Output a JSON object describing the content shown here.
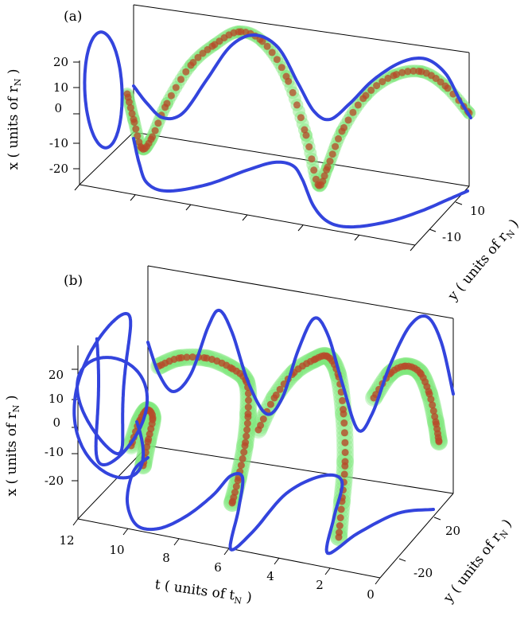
{
  "colors": {
    "projection": "#3344dd",
    "tube_glow": "#7fe77a",
    "tube_core": "#b84a2a",
    "axes": "#000000"
  },
  "chart_data": [
    {
      "type": "line",
      "panel_label": "(a)",
      "zlabel_prefix": "x ( units of r",
      "zlabel_sub": "N",
      "zlabel_suffix": " )",
      "ylabel_prefix": "y ( units of r",
      "ylabel_sub": "N",
      "ylabel_suffix": " )",
      "z_ticks": [
        "20",
        "10",
        "0",
        "-10",
        "-20"
      ],
      "z_tick_values": [
        20,
        10,
        0,
        -10,
        -20
      ],
      "y_ticks": [
        "10",
        "-10"
      ],
      "y_tick_values": [
        10,
        -10
      ],
      "t_range": [
        0,
        12
      ],
      "zlim": [
        -25,
        25
      ],
      "ylim": [
        -15,
        15
      ]
    },
    {
      "type": "line",
      "panel_label": "(b)",
      "zlabel_prefix": "x ( units of r",
      "zlabel_sub": "N",
      "zlabel_suffix": " )",
      "ylabel_prefix": "y ( units of r",
      "ylabel_sub": "N",
      "ylabel_suffix": " )",
      "xlabel_prefix": "t ( units of t",
      "xlabel_sub": "N",
      "xlabel_suffix": " )",
      "z_ticks": [
        "20",
        "10",
        "0",
        "-10",
        "-20"
      ],
      "z_tick_values": [
        20,
        10,
        0,
        -10,
        -20
      ],
      "y_ticks": [
        "20",
        "-20"
      ],
      "y_tick_values": [
        20,
        -20
      ],
      "t_ticks": [
        "12",
        "10",
        "8",
        "6",
        "4",
        "2",
        "0"
      ],
      "t_tick_values": [
        12,
        10,
        8,
        6,
        4,
        2,
        0
      ],
      "t_range": [
        0,
        12
      ],
      "zlim": [
        -25,
        25
      ],
      "ylim": [
        -30,
        30
      ]
    }
  ]
}
